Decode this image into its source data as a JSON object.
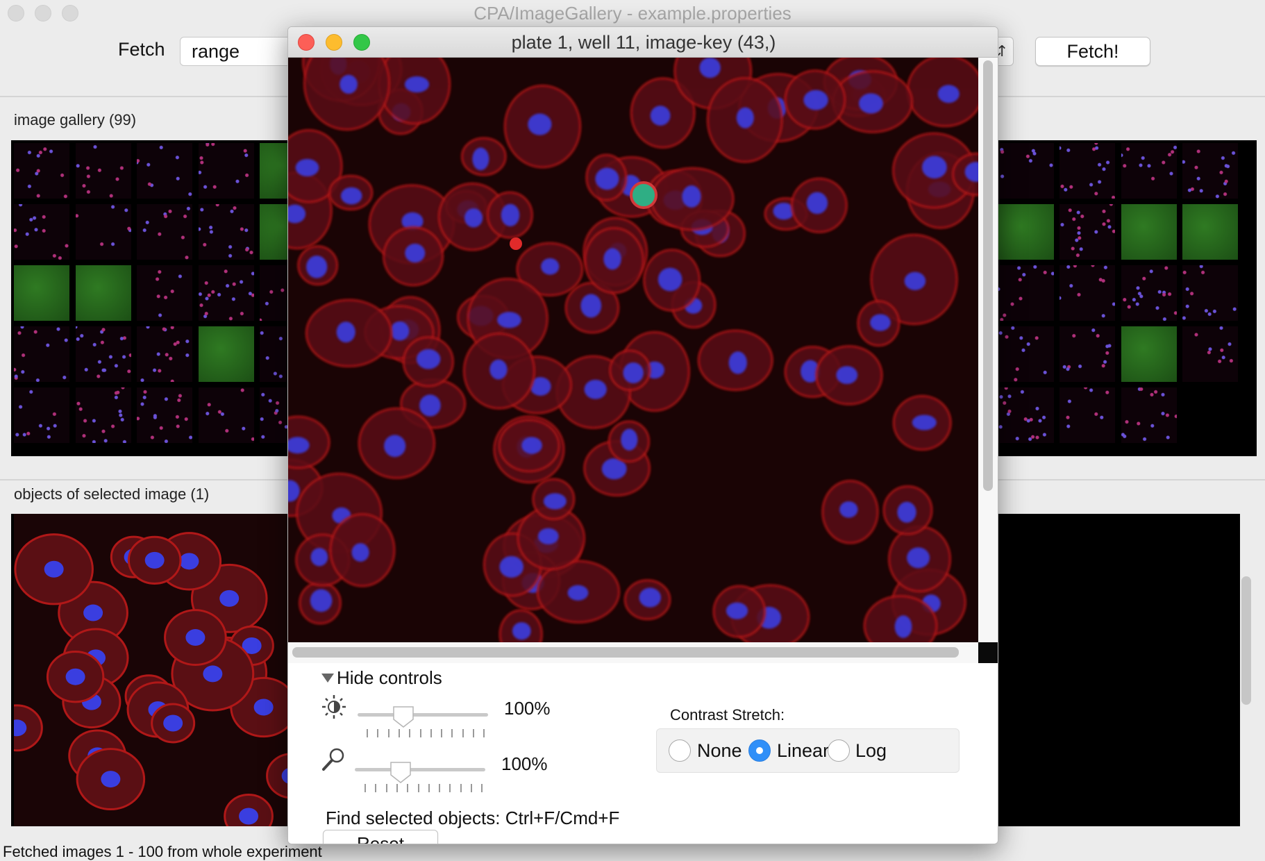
{
  "window": {
    "title": "CPA/ImageGallery - example.properties"
  },
  "toolbar": {
    "fetch_label": "Fetch",
    "fetch_mode": "range",
    "fetch_button": "Fetch!"
  },
  "gallery": {
    "label": "image gallery (99)"
  },
  "objects": {
    "label": "objects of selected image (1)"
  },
  "status": {
    "text": "Fetched images 1 - 100  from whole experiment"
  },
  "popup": {
    "title": "plate 1, well 11, image-key (43,)",
    "toggle_label": "Hide controls",
    "brightness": {
      "value_text": "100%",
      "level": 0.35,
      "icon": "brightness-icon"
    },
    "zoom": {
      "value_text": "100%",
      "level": 0.35,
      "icon": "zoom-icon"
    },
    "contrast": {
      "label": "Contrast Stretch:",
      "options": [
        "None",
        "Linear",
        "Log"
      ],
      "selected": "Linear"
    },
    "find_text": "Find selected objects: Ctrl+F/Cmd+F",
    "reset_label": "Reset"
  },
  "colors": {
    "close": "#fc5f57",
    "minimize": "#fdbc2e",
    "zoom": "#33c748",
    "radio_selected": "#2f8ff8",
    "cell_membrane": "#b01818",
    "nucleus": "#3a3ee0"
  }
}
